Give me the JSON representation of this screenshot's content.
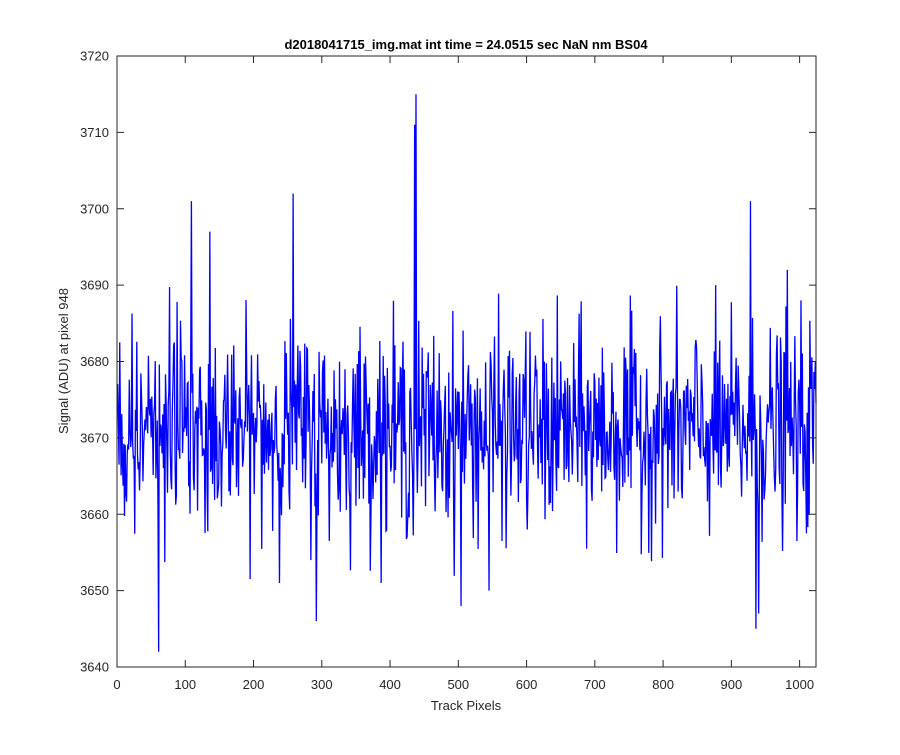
{
  "chart_data": {
    "type": "line",
    "title": "d2018041715_img.mat int time = 24.0515 sec  NaN nm BS04",
    "xlabel": "Track Pixels",
    "ylabel": "Signal (ADU) at pixel 948",
    "xlim": [
      0,
      1024
    ],
    "ylim": [
      3640,
      3720
    ],
    "xticks": [
      "0",
      "100",
      "200",
      "300",
      "400",
      "500",
      "600",
      "700",
      "800",
      "900",
      "1000"
    ],
    "yticks": [
      "3640",
      "3650",
      "3660",
      "3670",
      "3680",
      "3690",
      "3700",
      "3710",
      "3720"
    ],
    "grid": false,
    "legend": "none",
    "line_color": "#0000ff",
    "series": [
      {
        "x_start": 1,
        "x_step": 1,
        "mean": 3671,
        "noise_sd": 6.5,
        "seed": 948,
        "count": 1024,
        "values_note_points": [
          [
            61,
            3642
          ],
          [
            109,
            3701
          ],
          [
            136,
            3697
          ],
          [
            258,
            3702
          ],
          [
            292,
            3646
          ],
          [
            436,
            3711
          ],
          [
            438,
            3715
          ],
          [
            504,
            3648
          ],
          [
            545,
            3650
          ],
          [
            928,
            3701
          ],
          [
            936,
            3645
          ],
          [
            940,
            3647
          ],
          [
            982,
            3692
          ]
        ]
      }
    ]
  }
}
